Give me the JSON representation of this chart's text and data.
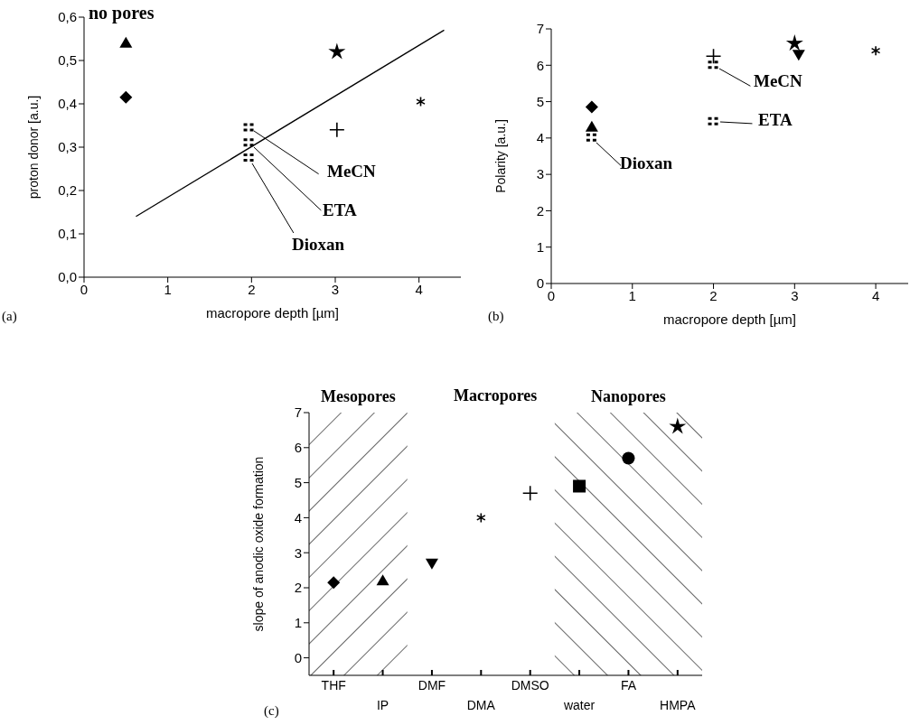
{
  "chart_data": [
    {
      "type": "scatter",
      "xlabel": "macropore depth [µm]",
      "ylabel": "proton donor [a.u.]",
      "xlim": [
        0,
        4.5
      ],
      "ylim": [
        0,
        0.6
      ],
      "xticks": [
        0,
        1,
        2,
        3,
        4
      ],
      "yticks": [
        {
          "value": 0,
          "label": "0,0"
        },
        {
          "value": 0.1,
          "label": "0,1"
        },
        {
          "value": 0.2,
          "label": "0,2"
        },
        {
          "value": 0.3,
          "label": "0,3"
        },
        {
          "value": 0.4,
          "label": "0,4"
        },
        {
          "value": 0.5,
          "label": "0,5"
        },
        {
          "value": 0.6,
          "label": "0,6"
        }
      ],
      "annotations": [
        "(a)",
        "no pores",
        {
          "text": "MeCN",
          "x": 1.97,
          "y": 0.345
        },
        {
          "text": "ETA",
          "x": 1.97,
          "y": 0.31
        },
        {
          "text": "Dioxan",
          "x": 1.97,
          "y": 0.275
        }
      ],
      "series": [
        {
          "color": "#000000",
          "marker": "diamond",
          "x": [
            0.5
          ],
          "values": [
            0.415
          ]
        },
        {
          "color": "#000000",
          "marker": "triangle",
          "x": [
            0.5
          ],
          "values": [
            0.54
          ]
        },
        {
          "color": "#000000",
          "marker": "star",
          "x": [
            3.02
          ],
          "values": [
            0.52
          ]
        },
        {
          "color": "#000000",
          "marker": "cross",
          "x": [
            3.02
          ],
          "values": [
            0.34
          ]
        },
        {
          "color": "#000000",
          "x": [
            4.02
          ],
          "values": [
            0.405
          ]
        },
        {
          "color": "#000000",
          "x": [
            1.97,
            1.97,
            1.97
          ],
          "values": [
            0.345,
            0.31,
            0.275
          ]
        },
        {
          "type": "line",
          "color": "#000000",
          "x": [
            0.62,
            4.3
          ],
          "values": [
            0.14,
            0.57
          ]
        }
      ]
    },
    {
      "type": "scatter",
      "xlabel": "macropore depth [µm]",
      "ylabel": "Polarity [a.u.]",
      "xlim": [
        0,
        4.4
      ],
      "ylim": [
        0,
        7
      ],
      "xticks": [
        0,
        1,
        2,
        3,
        4
      ],
      "yticks": [
        0,
        1,
        2,
        3,
        4,
        5,
        6,
        7
      ],
      "annotations": [
        "(b)",
        {
          "text": "MeCN",
          "x": 2.0,
          "y": 6.0
        },
        {
          "text": "ETA",
          "x": 2.0,
          "y": 4.45
        },
        {
          "text": "Dioxan",
          "x": 0.5,
          "y": 4.0
        }
      ],
      "series": [
        {
          "color": "#000000",
          "marker": "diamond",
          "x": [
            0.5
          ],
          "values": [
            4.85
          ]
        },
        {
          "color": "#000000",
          "marker": "triangle",
          "x": [
            0.5
          ],
          "values": [
            4.3
          ]
        },
        {
          "color": "#000000",
          "marker": "cross",
          "x": [
            2.0
          ],
          "values": [
            6.25
          ]
        },
        {
          "color": "#000000",
          "marker": "star",
          "x": [
            3.0
          ],
          "values": [
            6.6
          ]
        },
        {
          "color": "#000000",
          "marker": "triangle_down",
          "x": [
            3.05
          ],
          "values": [
            6.3
          ]
        },
        {
          "color": "#000000",
          "x": [
            4.0
          ],
          "values": [
            6.4
          ]
        },
        {
          "color": "#000000",
          "x": [
            2.0,
            2.0,
            0.5
          ],
          "values": [
            6.0,
            4.45,
            4.0
          ]
        }
      ]
    },
    {
      "type": "scatter",
      "ylabel": "slope of anodic oxide formation",
      "categories": [
        "THF",
        "IP",
        "DMF",
        "DMA",
        "DMSO",
        "water",
        "FA",
        "HMPA"
      ],
      "ylim": [
        -0.5,
        7
      ],
      "yticks": [
        0,
        1,
        2,
        3,
        4,
        5,
        6,
        7
      ],
      "annotations": [
        "(c)",
        "Macropores"
      ],
      "bands": [
        {
          "axis": "x",
          "from": "THF",
          "to": "IP",
          "label": "Mesopores",
          "color": "#000000"
        },
        {
          "axis": "x",
          "from": "water",
          "to": "HMPA",
          "label": "Nanopores",
          "color": "#000000"
        }
      ],
      "series": [
        {
          "color": "#000000",
          "marker": "diamond",
          "values": [
            2.15,
            null,
            null,
            null,
            null,
            null,
            null,
            null
          ]
        },
        {
          "color": "#000000",
          "marker": "triangle",
          "values": [
            null,
            2.2,
            null,
            null,
            null,
            null,
            null,
            null
          ]
        },
        {
          "color": "#000000",
          "marker": "triangle_down",
          "values": [
            null,
            null,
            2.7,
            null,
            null,
            null,
            null,
            null
          ]
        },
        {
          "color": "#000000",
          "values": [
            null,
            null,
            null,
            4.0,
            null,
            null,
            null,
            null
          ]
        },
        {
          "color": "#000000",
          "marker": "cross",
          "values": [
            null,
            null,
            null,
            null,
            4.7,
            null,
            null,
            null
          ]
        },
        {
          "color": "#000000",
          "marker": "square",
          "values": [
            null,
            null,
            null,
            null,
            null,
            4.9,
            null,
            null
          ]
        },
        {
          "color": "#000000",
          "marker": "circle",
          "values": [
            null,
            null,
            null,
            null,
            null,
            null,
            5.7,
            null
          ]
        },
        {
          "color": "#000000",
          "marker": "star",
          "values": [
            null,
            null,
            null,
            null,
            null,
            null,
            null,
            6.6
          ]
        }
      ]
    }
  ]
}
